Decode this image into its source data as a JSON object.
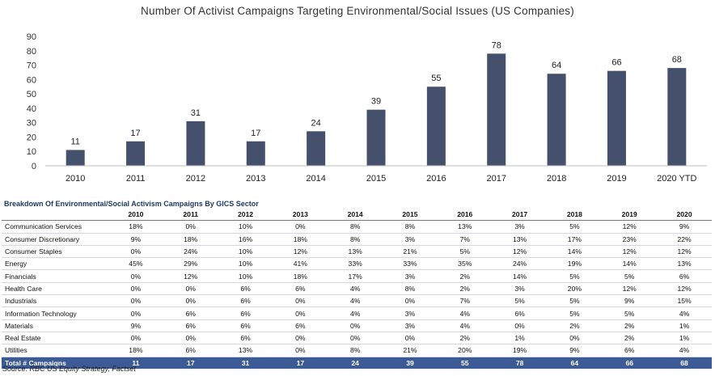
{
  "chart_data": {
    "type": "bar",
    "title": "Number Of Activist Campaigns Targeting Environmental/Social  Issues (US Companies)",
    "categories": [
      "2010",
      "2011",
      "2012",
      "2013",
      "2014",
      "2015",
      "2016",
      "2017",
      "2018",
      "2019",
      "2020 YTD"
    ],
    "values": [
      11,
      17,
      31,
      17,
      24,
      39,
      55,
      78,
      64,
      66,
      68
    ],
    "yticks": [
      0,
      10,
      20,
      30,
      40,
      50,
      60,
      70,
      80,
      90
    ],
    "ylim": [
      0,
      90
    ],
    "grid": false,
    "legend": "none",
    "bar_color": "#44506c",
    "xlabel": "",
    "ylabel": ""
  },
  "table": {
    "title": "Breakdown Of Environmental/Social Activism Campaigns By GICS Sector",
    "columns": [
      "2010",
      "2011",
      "2012",
      "2013",
      "2014",
      "2015",
      "2016",
      "2017",
      "2018",
      "2019",
      "2020"
    ],
    "rows": [
      {
        "sector": "Communication Services",
        "values": [
          "18%",
          "0%",
          "10%",
          "0%",
          "8%",
          "8%",
          "13%",
          "3%",
          "5%",
          "12%",
          "9%"
        ]
      },
      {
        "sector": "Consumer Discretionary",
        "values": [
          "9%",
          "18%",
          "16%",
          "18%",
          "8%",
          "3%",
          "7%",
          "13%",
          "17%",
          "23%",
          "22%"
        ]
      },
      {
        "sector": "Consumer Staples",
        "values": [
          "0%",
          "24%",
          "10%",
          "12%",
          "13%",
          "21%",
          "5%",
          "12%",
          "14%",
          "12%",
          "12%"
        ]
      },
      {
        "sector": "Energy",
        "values": [
          "45%",
          "29%",
          "10%",
          "41%",
          "33%",
          "33%",
          "35%",
          "24%",
          "19%",
          "14%",
          "13%"
        ]
      },
      {
        "sector": "Financials",
        "values": [
          "0%",
          "12%",
          "10%",
          "18%",
          "17%",
          "3%",
          "2%",
          "14%",
          "5%",
          "5%",
          "6%"
        ]
      },
      {
        "sector": "Health Care",
        "values": [
          "0%",
          "0%",
          "6%",
          "6%",
          "4%",
          "8%",
          "2%",
          "3%",
          "20%",
          "12%",
          "12%"
        ]
      },
      {
        "sector": "Industrials",
        "values": [
          "0%",
          "0%",
          "6%",
          "0%",
          "4%",
          "0%",
          "7%",
          "5%",
          "5%",
          "9%",
          "15%"
        ]
      },
      {
        "sector": "Information Technology",
        "values": [
          "0%",
          "6%",
          "6%",
          "0%",
          "4%",
          "3%",
          "4%",
          "6%",
          "5%",
          "5%",
          "4%"
        ]
      },
      {
        "sector": "Materials",
        "values": [
          "9%",
          "6%",
          "6%",
          "6%",
          "0%",
          "3%",
          "4%",
          "0%",
          "2%",
          "2%",
          "1%"
        ]
      },
      {
        "sector": "Real Estate",
        "values": [
          "0%",
          "0%",
          "6%",
          "0%",
          "0%",
          "0%",
          "2%",
          "1%",
          "0%",
          "2%",
          "1%"
        ]
      },
      {
        "sector": "Utilities",
        "values": [
          "18%",
          "6%",
          "13%",
          "0%",
          "8%",
          "21%",
          "20%",
          "19%",
          "9%",
          "6%",
          "4%"
        ]
      }
    ],
    "total": {
      "sector": "Total # Campaigns",
      "values": [
        "11",
        "17",
        "31",
        "17",
        "24",
        "39",
        "55",
        "78",
        "64",
        "66",
        "68"
      ]
    },
    "total_color": "#3c5a96"
  },
  "source": "Source: RBC US Equity Strategy, Factset"
}
